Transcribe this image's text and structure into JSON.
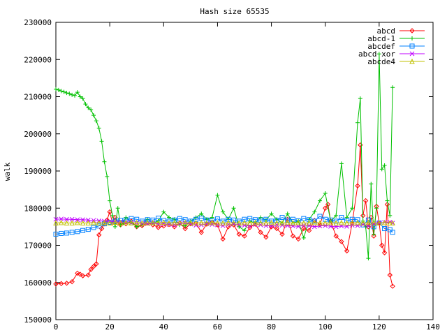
{
  "chart_data": {
    "type": "line",
    "title": "Hash size 65535",
    "xlabel": "",
    "ylabel": "walk",
    "xlim": [
      0,
      140
    ],
    "ylim": [
      150000,
      230000
    ],
    "x_ticks": [
      "0",
      "20",
      "40",
      "60",
      "80",
      "100",
      "120",
      "140"
    ],
    "y_ticks": [
      "150000",
      "160000",
      "170000",
      "180000",
      "190000",
      "200000",
      "210000",
      "220000",
      "230000"
    ],
    "grid": false,
    "legend_position": "top-right",
    "series": [
      {
        "name": "abcd",
        "color": "#ff0000",
        "marker": "diamond",
        "x": [
          0,
          2,
          4,
          6,
          8,
          9,
          10,
          12,
          13,
          14,
          15,
          16,
          17,
          18,
          19,
          20,
          21,
          22,
          23,
          24,
          25,
          26,
          28,
          30,
          32,
          34,
          36,
          38,
          40,
          42,
          44,
          46,
          48,
          50,
          52,
          54,
          56,
          58,
          60,
          62,
          64,
          66,
          68,
          70,
          72,
          74,
          76,
          78,
          80,
          82,
          84,
          86,
          88,
          90,
          92,
          94,
          96,
          98,
          100,
          101,
          102,
          104,
          106,
          108,
          110,
          112,
          113,
          114,
          115,
          116,
          117,
          118,
          119,
          120,
          121,
          122,
          123,
          124,
          125
        ],
        "y": [
          159600,
          159700,
          159800,
          160200,
          162500,
          162200,
          161800,
          162000,
          163500,
          164300,
          165000,
          172800,
          174500,
          175800,
          176800,
          179000,
          176000,
          177500,
          176000,
          175500,
          176200,
          175800,
          176500,
          175000,
          175300,
          176000,
          175500,
          174800,
          175200,
          175600,
          175000,
          176000,
          174500,
          175800,
          176000,
          173500,
          175700,
          176200,
          175500,
          171700,
          175000,
          175500,
          173000,
          172500,
          174800,
          175700,
          173500,
          172200,
          175000,
          174500,
          173000,
          177000,
          172500,
          171700,
          174500,
          174000,
          176700,
          175500,
          180000,
          181000,
          176500,
          172500,
          171000,
          168500,
          176000,
          186000,
          197000,
          178000,
          182000,
          175000,
          177500,
          172500,
          180500,
          176000,
          170000,
          168000,
          181000,
          162000,
          159000
        ]
      },
      {
        "name": "abcd-1",
        "color": "#00c000",
        "marker": "plus",
        "x": [
          0,
          1,
          2,
          3,
          4,
          5,
          6,
          7,
          8,
          9,
          10,
          11,
          12,
          13,
          14,
          15,
          16,
          17,
          18,
          19,
          20,
          21,
          22,
          23,
          24,
          25,
          26,
          28,
          30,
          32,
          34,
          36,
          38,
          40,
          42,
          44,
          46,
          48,
          50,
          52,
          54,
          56,
          58,
          60,
          62,
          64,
          66,
          68,
          70,
          72,
          74,
          76,
          78,
          80,
          82,
          84,
          86,
          88,
          90,
          92,
          94,
          96,
          98,
          100,
          102,
          104,
          106,
          108,
          110,
          112,
          113,
          114,
          115,
          116,
          117,
          118,
          119,
          120,
          121,
          122,
          123,
          124,
          125
        ],
        "y": [
          212000,
          211800,
          211500,
          211300,
          211000,
          210800,
          210500,
          210300,
          211200,
          210000,
          209500,
          208000,
          207000,
          206500,
          205000,
          203500,
          201500,
          198000,
          192500,
          188500,
          182000,
          178000,
          175000,
          180000,
          175500,
          176000,
          177500,
          176200,
          175000,
          175500,
          177000,
          176000,
          176500,
          179000,
          177500,
          177000,
          175500,
          175200,
          176500,
          177500,
          178500,
          177000,
          177500,
          183500,
          179000,
          177000,
          180000,
          175000,
          174000,
          176500,
          176000,
          177500,
          176800,
          178500,
          177000,
          176000,
          178500,
          176000,
          176500,
          172000,
          177000,
          179000,
          182000,
          184000,
          176500,
          178000,
          192000,
          177500,
          180000,
          203000,
          209500,
          176500,
          175000,
          166500,
          186500,
          173000,
          180000,
          221500,
          190500,
          191500,
          182000,
          178000,
          212500
        ]
      },
      {
        "name": "abcdef",
        "color": "#0080ff",
        "marker": "square",
        "x": [
          0,
          2,
          4,
          6,
          8,
          10,
          12,
          14,
          16,
          18,
          20,
          22,
          24,
          26,
          28,
          30,
          32,
          34,
          36,
          38,
          40,
          42,
          44,
          46,
          48,
          50,
          52,
          54,
          56,
          58,
          60,
          62,
          64,
          66,
          68,
          70,
          72,
          74,
          76,
          78,
          80,
          82,
          84,
          86,
          88,
          90,
          92,
          94,
          96,
          98,
          100,
          102,
          104,
          106,
          108,
          110,
          112,
          114,
          116,
          118,
          120,
          122,
          124,
          125
        ],
        "y": [
          173000,
          173200,
          173300,
          173500,
          173700,
          174000,
          174300,
          174800,
          175200,
          175800,
          176200,
          176500,
          176700,
          176800,
          177200,
          177000,
          176500,
          176900,
          176800,
          177300,
          176700,
          176500,
          176800,
          177200,
          176900,
          176500,
          177000,
          177300,
          176800,
          176600,
          177100,
          176500,
          177000,
          176800,
          176500,
          177000,
          177200,
          176900,
          176800,
          177000,
          176500,
          176700,
          177500,
          176800,
          177000,
          176600,
          177200,
          176900,
          176500,
          177800,
          177000,
          176800,
          176500,
          177500,
          176600,
          177000,
          176900,
          175500,
          176800,
          175000,
          176000,
          174500,
          174200,
          173500
        ]
      },
      {
        "name": "abcd xor",
        "color": "#c000ff",
        "marker": "x",
        "x": [
          0,
          2,
          4,
          6,
          8,
          10,
          12,
          14,
          16,
          18,
          20,
          22,
          24,
          26,
          28,
          30,
          32,
          34,
          36,
          38,
          40,
          42,
          44,
          46,
          48,
          50,
          52,
          54,
          56,
          58,
          60,
          62,
          64,
          66,
          68,
          70,
          72,
          74,
          76,
          78,
          80,
          82,
          84,
          86,
          88,
          90,
          92,
          94,
          96,
          98,
          100,
          102,
          104,
          106,
          108,
          110,
          112,
          114,
          116,
          118,
          120,
          122,
          124,
          125
        ],
        "y": [
          177000,
          177100,
          177000,
          177000,
          176900,
          176900,
          176800,
          176700,
          176600,
          176500,
          176400,
          176300,
          176200,
          176100,
          176000,
          176000,
          175900,
          175800,
          176000,
          175700,
          175800,
          175600,
          175500,
          175800,
          176000,
          175700,
          175400,
          175500,
          175800,
          175600,
          175500,
          175300,
          175600,
          175700,
          175500,
          175400,
          175200,
          175600,
          175500,
          175300,
          175200,
          175500,
          175400,
          175300,
          175200,
          175100,
          175400,
          175300,
          175000,
          175200,
          175300,
          175100,
          175000,
          175200,
          175100,
          175400,
          175300,
          175600,
          175200,
          175800,
          176000,
          176200,
          176200,
          176000
        ]
      },
      {
        "name": "abcde4",
        "color": "#c0c000",
        "marker": "triangle",
        "x": [
          0,
          2,
          4,
          6,
          8,
          10,
          12,
          14,
          16,
          18,
          20,
          22,
          24,
          26,
          28,
          30,
          32,
          34,
          36,
          38,
          40,
          42,
          44,
          46,
          48,
          50,
          52,
          54,
          56,
          58,
          60,
          62,
          64,
          66,
          68,
          70,
          72,
          74,
          76,
          78,
          80,
          82,
          84,
          86,
          88,
          90,
          92,
          94,
          96,
          98,
          100,
          102,
          104,
          106,
          108,
          110,
          112,
          114,
          116,
          118,
          120,
          122,
          124,
          125
        ],
        "y": [
          176000,
          176100,
          176000,
          176000,
          176100,
          176000,
          176000,
          176100,
          176000,
          176100,
          176000,
          176200,
          176000,
          176100,
          176000,
          176100,
          176000,
          176000,
          176100,
          176000,
          176200,
          176000,
          176100,
          176000,
          176100,
          176000,
          176000,
          176100,
          176000,
          176100,
          176000,
          176000,
          176100,
          176000,
          176000,
          176100,
          176000,
          176100,
          176000,
          176000,
          176100,
          176000,
          176000,
          176100,
          176000,
          176100,
          176000,
          176000,
          176100,
          176000,
          176000,
          176100,
          176000,
          176100,
          176000,
          176000,
          176100,
          176000,
          176100,
          176000,
          176000,
          176100,
          176000,
          176000
        ]
      }
    ]
  }
}
